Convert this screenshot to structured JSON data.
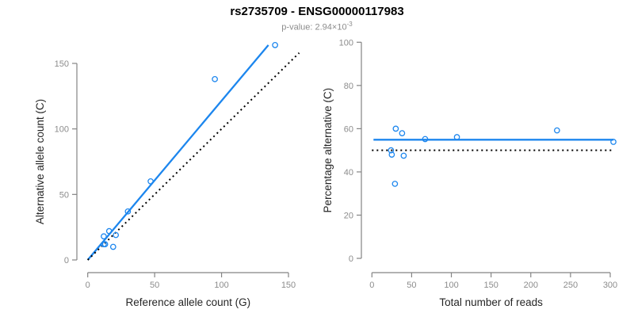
{
  "header": {
    "title": "rs2735709 - ENSG00000117983",
    "subtitle": {
      "label": "p-value: 2.94×10",
      "exponent": "-3"
    }
  },
  "colors": {
    "accent_blue": "#1C86EE",
    "dotted_black": "#000000",
    "axis_line_gray": "#848484",
    "tick_label_gray": "#8c8c8c",
    "axis_title_dark": "#262626"
  },
  "chart_data": [
    {
      "type": "scatter",
      "name": "allele-counts-plot",
      "xlabel": "Reference allele count (G)",
      "ylabel": "Alternative allele count (C)",
      "xlim": [
        0,
        160
      ],
      "ylim": [
        0,
        165
      ],
      "xticks": [
        0,
        50,
        100,
        150
      ],
      "yticks": [
        0,
        50,
        100,
        150
      ],
      "grid": false,
      "legend": "none",
      "points": [
        {
          "x": 12,
          "y": 18
        },
        {
          "x": 16,
          "y": 22
        },
        {
          "x": 30,
          "y": 37
        },
        {
          "x": 47,
          "y": 60
        },
        {
          "x": 95,
          "y": 138
        },
        {
          "x": 140,
          "y": 164
        },
        {
          "x": 12,
          "y": 12
        },
        {
          "x": 13,
          "y": 12
        },
        {
          "x": 21,
          "y": 19
        },
        {
          "x": 19,
          "y": 10
        }
      ],
      "lines": [
        {
          "name": "fit-line",
          "style": "solid",
          "color_key": "accent_blue",
          "x1": 0,
          "y1": 0,
          "x2": 135,
          "y2": 164
        },
        {
          "name": "identity-line",
          "style": "dotted",
          "color_key": "dotted_black",
          "x1": 0,
          "y1": 0,
          "x2": 158,
          "y2": 158
        }
      ]
    },
    {
      "type": "scatter",
      "name": "percentage-vs-reads-plot",
      "xlabel": "Total number of reads",
      "ylabel": "Percentage alternative (C)",
      "xlim": [
        0,
        310
      ],
      "ylim": [
        0,
        100
      ],
      "xticks": [
        0,
        50,
        100,
        150,
        200,
        250,
        300
      ],
      "yticks": [
        0,
        20,
        40,
        60,
        80,
        100
      ],
      "grid": false,
      "legend": "none",
      "points": [
        {
          "x": 30,
          "y": 60.0
        },
        {
          "x": 38,
          "y": 57.9
        },
        {
          "x": 67,
          "y": 55.2
        },
        {
          "x": 107,
          "y": 56.1
        },
        {
          "x": 233,
          "y": 59.2
        },
        {
          "x": 304,
          "y": 53.9
        },
        {
          "x": 24,
          "y": 50.0
        },
        {
          "x": 25,
          "y": 48.0
        },
        {
          "x": 40,
          "y": 47.5
        },
        {
          "x": 29,
          "y": 34.5
        }
      ],
      "lines": [
        {
          "name": "mean-percentage-line",
          "style": "solid",
          "color_key": "accent_blue",
          "x1": 2,
          "y1": 54.9,
          "x2": 304,
          "y2": 54.9
        },
        {
          "name": "null-50-percent-line",
          "style": "dotted",
          "color_key": "dotted_black",
          "x1": 0,
          "y1": 50,
          "x2": 302,
          "y2": 50
        }
      ]
    }
  ]
}
